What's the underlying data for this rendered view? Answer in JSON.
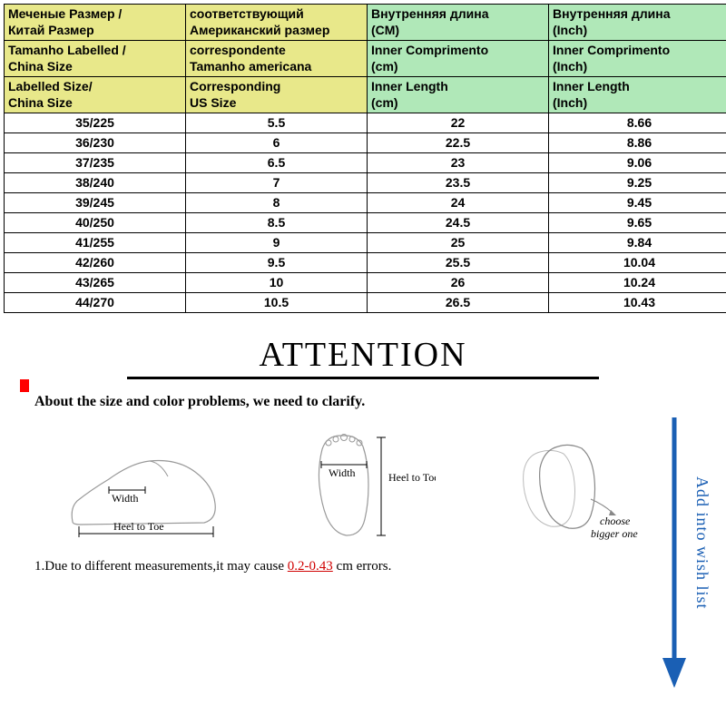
{
  "table": {
    "header_colors": {
      "col_a": "#e8e88a",
      "col_b": "#e8e88a",
      "col_c": "#b0e8b8",
      "col_d": "#b0e8b8"
    },
    "headers": [
      {
        "ru1": "Меченые Размер /",
        "ru2": "Китай Размер",
        "pt1": "Tamanho Labelled /",
        "pt2": "China Size",
        "en1": "Labelled Size/",
        "en2": "China Size"
      },
      {
        "ru1": "соответствующий",
        "ru2": "Американский размер",
        "pt1": "correspondente",
        "pt2": "Tamanho americana",
        "en1": "Corresponding",
        "en2": "US Size"
      },
      {
        "ru1": "Внутренняя длина",
        "ru2": "(CM)",
        "pt1": "Inner Comprimento",
        "pt2": "(cm)",
        "en1": "Inner Length",
        "en2": "(cm)"
      },
      {
        "ru1": "Внутренняя длина",
        "ru2": "(Inch)",
        "pt1": "Inner Comprimento",
        "pt2": "(Inch)",
        "en1": "Inner Length",
        "en2": "(Inch)"
      }
    ],
    "rows": [
      [
        "35/225",
        "5.5",
        "22",
        "8.66"
      ],
      [
        "36/230",
        "6",
        "22.5",
        "8.86"
      ],
      [
        "37/235",
        "6.5",
        "23",
        "9.06"
      ],
      [
        "38/240",
        "7",
        "23.5",
        "9.25"
      ],
      [
        "39/245",
        "8",
        "24",
        "9.45"
      ],
      [
        "40/250",
        "8.5",
        "24.5",
        "9.65"
      ],
      [
        "41/255",
        "9",
        "25",
        "9.84"
      ],
      [
        "42/260",
        "9.5",
        "25.5",
        "10.04"
      ],
      [
        "43/265",
        "10",
        "26",
        "10.24"
      ],
      [
        "44/270",
        "10.5",
        "26.5",
        "10.43"
      ]
    ]
  },
  "attention": {
    "title": "ATTENTION",
    "subtitle": "About the size and color problems, we need to clarify.",
    "diagram_labels": {
      "width": "Width",
      "heel_to_toe": "Heel to Toe",
      "choose_bigger": "choose",
      "bigger_one": "bigger one"
    },
    "note_prefix": "1.Due to different measurements,it may cause ",
    "note_red": "0.2-0.43",
    "note_suffix": " cm errors."
  },
  "wishlist": {
    "label": "Add into wish list",
    "arrow_color": "#1a5fb4"
  }
}
